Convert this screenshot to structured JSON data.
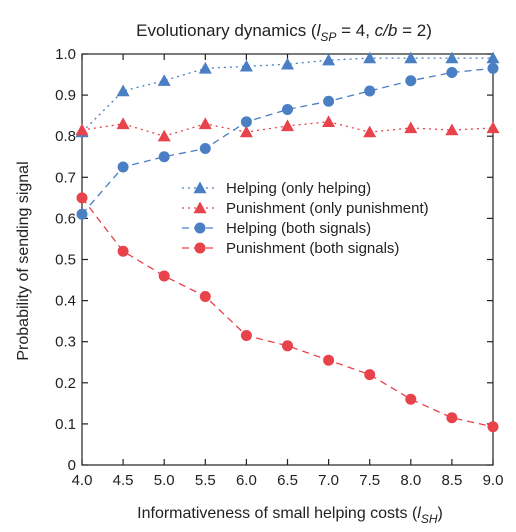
{
  "chart_data": {
    "type": "line",
    "title": {
      "prefix": "Evolutionary dynamics (",
      "var": "l",
      "var_sub": "SP",
      "mid": " = 4, ",
      "cb": "c/b",
      "suffix": " = 2)"
    },
    "xlabel": {
      "prefix": "Informativeness of small helping costs (",
      "var": "l",
      "var_sub": "SH",
      "suffix": ")"
    },
    "ylabel": "Probability of sending signal",
    "x": [
      4.0,
      4.5,
      5.0,
      5.5,
      6.0,
      6.5,
      7.0,
      7.5,
      8.0,
      8.5,
      9.0
    ],
    "xlim": [
      4.0,
      9.0
    ],
    "ylim": [
      0,
      1.0
    ],
    "x_ticks": [
      "4.0",
      "4.5",
      "5.0",
      "5.5",
      "6.0",
      "6.5",
      "7.0",
      "7.5",
      "8.0",
      "8.5",
      "9.0"
    ],
    "y_ticks": [
      "0",
      "0.1",
      "0.2",
      "0.3",
      "0.4",
      "0.5",
      "0.6",
      "0.7",
      "0.8",
      "0.9",
      "1.0"
    ],
    "grid": false,
    "legend_position": "center",
    "series": [
      {
        "name": "Helping (only helping)",
        "color": "#4a7fc4",
        "marker": "triangle",
        "dash": "dotted",
        "values": [
          0.81,
          0.91,
          0.935,
          0.965,
          0.97,
          0.975,
          0.985,
          0.99,
          0.99,
          0.99,
          0.99
        ]
      },
      {
        "name": "Punishment (only punishment)",
        "color": "#e8424b",
        "marker": "triangle",
        "dash": "dotted",
        "values": [
          0.815,
          0.83,
          0.8,
          0.83,
          0.81,
          0.825,
          0.835,
          0.81,
          0.82,
          0.815,
          0.82
        ]
      },
      {
        "name": "Helping (both signals)",
        "color": "#4a7fc4",
        "marker": "circle",
        "dash": "dashed",
        "values": [
          0.61,
          0.725,
          0.75,
          0.77,
          0.835,
          0.865,
          0.885,
          0.91,
          0.935,
          0.955,
          0.965
        ]
      },
      {
        "name": "Punishment (both signals)",
        "color": "#e8424b",
        "marker": "circle",
        "dash": "dashed",
        "values": [
          0.65,
          0.52,
          0.46,
          0.41,
          0.315,
          0.29,
          0.255,
          0.22,
          0.16,
          0.115,
          0.093
        ]
      }
    ]
  }
}
